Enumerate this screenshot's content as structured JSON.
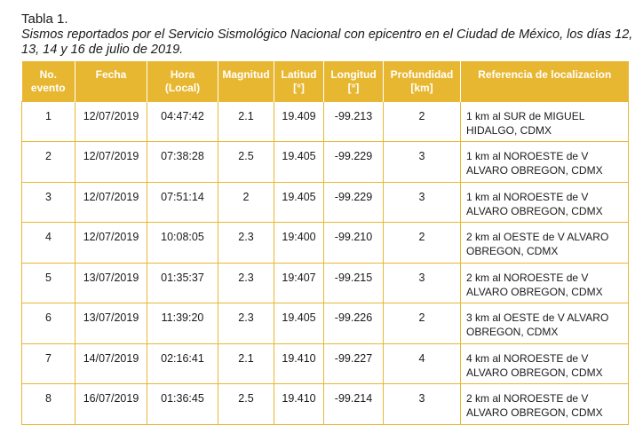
{
  "caption": {
    "label": "Tabla 1.",
    "subtitle": "Sismos reportados por el Servicio Sismológico Nacional con epicentro en el Ciudad de México, los días 12, 13, 14 y 16 de julio de 2019."
  },
  "table": {
    "header_color": "#e8b731",
    "headers": [
      [
        "No.",
        "evento"
      ],
      [
        "Fecha",
        ""
      ],
      [
        "Hora",
        "(Local)"
      ],
      [
        "Magnitud",
        ""
      ],
      [
        "Latitud",
        "[°]"
      ],
      [
        "Longitud",
        "[°]"
      ],
      [
        "Profundidad",
        "[km]"
      ],
      [
        "Referencia de localizacion",
        ""
      ]
    ],
    "rows": [
      [
        "1",
        "12/07/2019",
        "04:47:42",
        "2.1",
        "19.409",
        "-99.213",
        "2",
        "1 km al SUR de MIGUEL HIDALGO, CDMX"
      ],
      [
        "2",
        "12/07/2019",
        "07:38:28",
        "2.5",
        "19.405",
        "-99.229",
        "3",
        "1 km al NOROESTE de V ALVARO OBREGON, CDMX"
      ],
      [
        "3",
        "12/07/2019",
        "07:51:14",
        "2",
        "19.405",
        "-99.229",
        "3",
        "1 km al NOROESTE de V ALVARO OBREGON, CDMX"
      ],
      [
        "4",
        "12/07/2019",
        "10:08:05",
        "2.3",
        "19:400",
        "-99.210",
        "2",
        "2 km al OESTE de V ALVARO OBREGON, CDMX"
      ],
      [
        "5",
        "13/07/2019",
        "01:35:37",
        "2.3",
        "19:407",
        "-99.215",
        "3",
        "2 km al NOROESTE de V ALVARO OBREGON, CDMX"
      ],
      [
        "6",
        "13/07/2019",
        "11:39:20",
        "2.3",
        "19.405",
        "-99.226",
        "2",
        "3 km al OESTE de V ALVARO OBREGON, CDMX"
      ],
      [
        "7",
        "14/07/2019",
        "02:16:41",
        "2.1",
        "19.410",
        "-99.227",
        "4",
        "4 km al NOROESTE de V ALVARO OBREGON, CDMX"
      ],
      [
        "8",
        "16/07/2019",
        "01:36:45",
        "2.5",
        "19.410",
        "-99.214",
        "3",
        "2 km al NOROESTE de V ALVARO OBREGON, CDMX"
      ]
    ]
  }
}
